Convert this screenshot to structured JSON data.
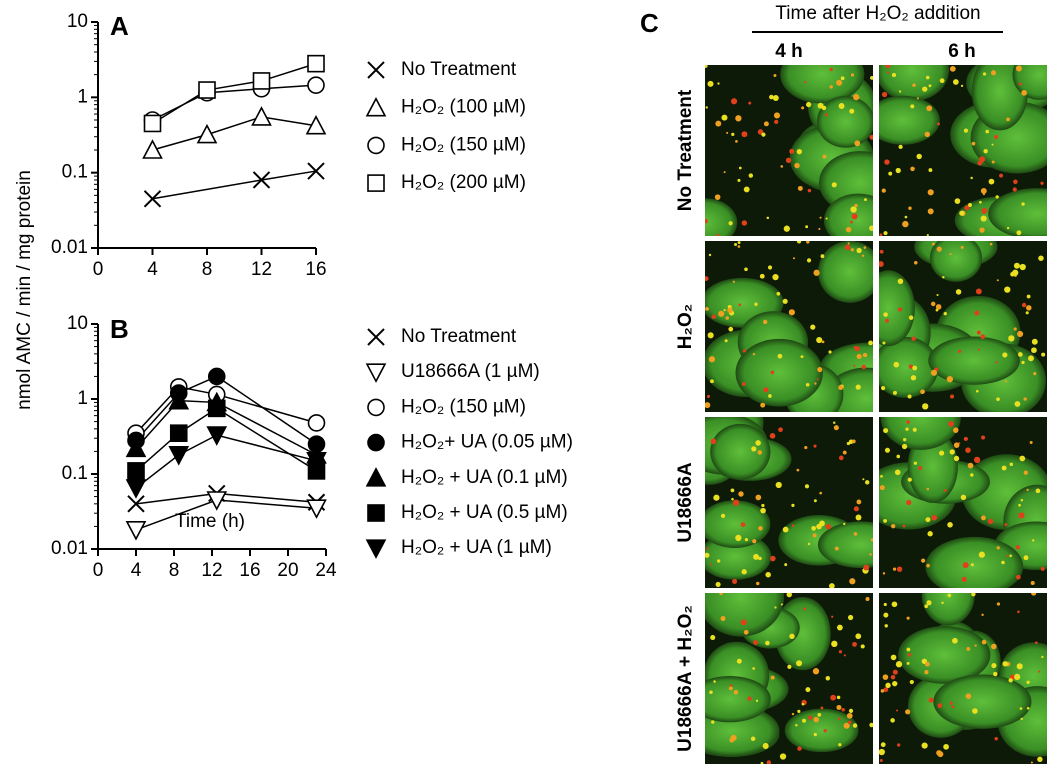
{
  "chart_data": [
    {
      "type": "line",
      "panel": "A",
      "ylabel": "nmol AMC / min / mg protein",
      "log_y": true,
      "xlim": [
        0,
        16
      ],
      "xticks": [
        0,
        4,
        8,
        12,
        16
      ],
      "ylim": [
        0.01,
        10
      ],
      "yticks": [
        0.01,
        0.1,
        1,
        10
      ],
      "series": [
        {
          "name": "No Treatment",
          "marker": "x",
          "color": "#000000",
          "x": [
            4,
            12,
            16
          ],
          "values": [
            0.045,
            0.08,
            0.105
          ]
        },
        {
          "name": "H₂O₂ (100 µM)",
          "marker": "triangle-open",
          "color": "#000000",
          "x": [
            4,
            8,
            12,
            16
          ],
          "values": [
            0.2,
            0.32,
            0.55,
            0.42
          ]
        },
        {
          "name": "H₂O₂ (150 µM)",
          "marker": "circle-open",
          "color": "#000000",
          "x": [
            4,
            8,
            12,
            16
          ],
          "values": [
            0.5,
            1.15,
            1.3,
            1.45
          ]
        },
        {
          "name": "H₂O₂ (200 µM)",
          "marker": "square-open",
          "color": "#000000",
          "x": [
            4,
            8,
            12,
            16
          ],
          "values": [
            0.45,
            1.25,
            1.65,
            2.8
          ]
        }
      ]
    },
    {
      "type": "line",
      "panel": "B",
      "xlabel": "Time (h)",
      "log_y": true,
      "xlim": [
        0,
        24
      ],
      "xticks": [
        0,
        4,
        8,
        12,
        16,
        20,
        24
      ],
      "ylim": [
        0.01,
        10
      ],
      "yticks": [
        0.01,
        0.1,
        1,
        10
      ],
      "series": [
        {
          "name": "No Treatment",
          "marker": "x",
          "color": "#000000",
          "x": [
            4,
            12.5,
            23
          ],
          "values": [
            0.04,
            0.055,
            0.042
          ]
        },
        {
          "name": "U18666A (1 µM)",
          "marker": "triangle-down-open",
          "color": "#000000",
          "x": [
            4,
            12.5,
            23
          ],
          "values": [
            0.018,
            0.045,
            0.035
          ]
        },
        {
          "name": "H₂O₂ (150 µM)",
          "marker": "circle-open",
          "color": "#000000",
          "x": [
            4,
            8.5,
            12.5,
            23
          ],
          "values": [
            0.35,
            1.45,
            1.15,
            0.48
          ]
        },
        {
          "name": "H₂O₂+ UA (0.05 µM)",
          "marker": "circle",
          "color": "#000000",
          "x": [
            4,
            8.5,
            12.5,
            23
          ],
          "values": [
            0.28,
            1.2,
            2.0,
            0.25
          ]
        },
        {
          "name": "H₂O₂ + UA (0.1 µM)",
          "marker": "triangle",
          "color": "#000000",
          "x": [
            4,
            8.5,
            12.5,
            23
          ],
          "values": [
            0.22,
            0.95,
            0.9,
            0.18
          ]
        },
        {
          "name": "H₂O₂ + UA (0.5 µM)",
          "marker": "square",
          "color": "#000000",
          "x": [
            4,
            8.5,
            12.5,
            23
          ],
          "values": [
            0.11,
            0.35,
            0.75,
            0.11
          ]
        },
        {
          "name": "H₂O₂ + UA (1 µM)",
          "marker": "triangle-down",
          "color": "#000000",
          "x": [
            4,
            8.5,
            12.5,
            23
          ],
          "values": [
            0.065,
            0.18,
            0.33,
            0.15
          ]
        }
      ]
    }
  ],
  "panel_c": {
    "label": "C",
    "header": "Time after H₂O₂ addition",
    "columns": [
      "4 h",
      "6 h"
    ],
    "rows": [
      "No Treatment",
      "H₂O₂",
      "U18666A",
      "U18666A + H₂O₂"
    ]
  }
}
